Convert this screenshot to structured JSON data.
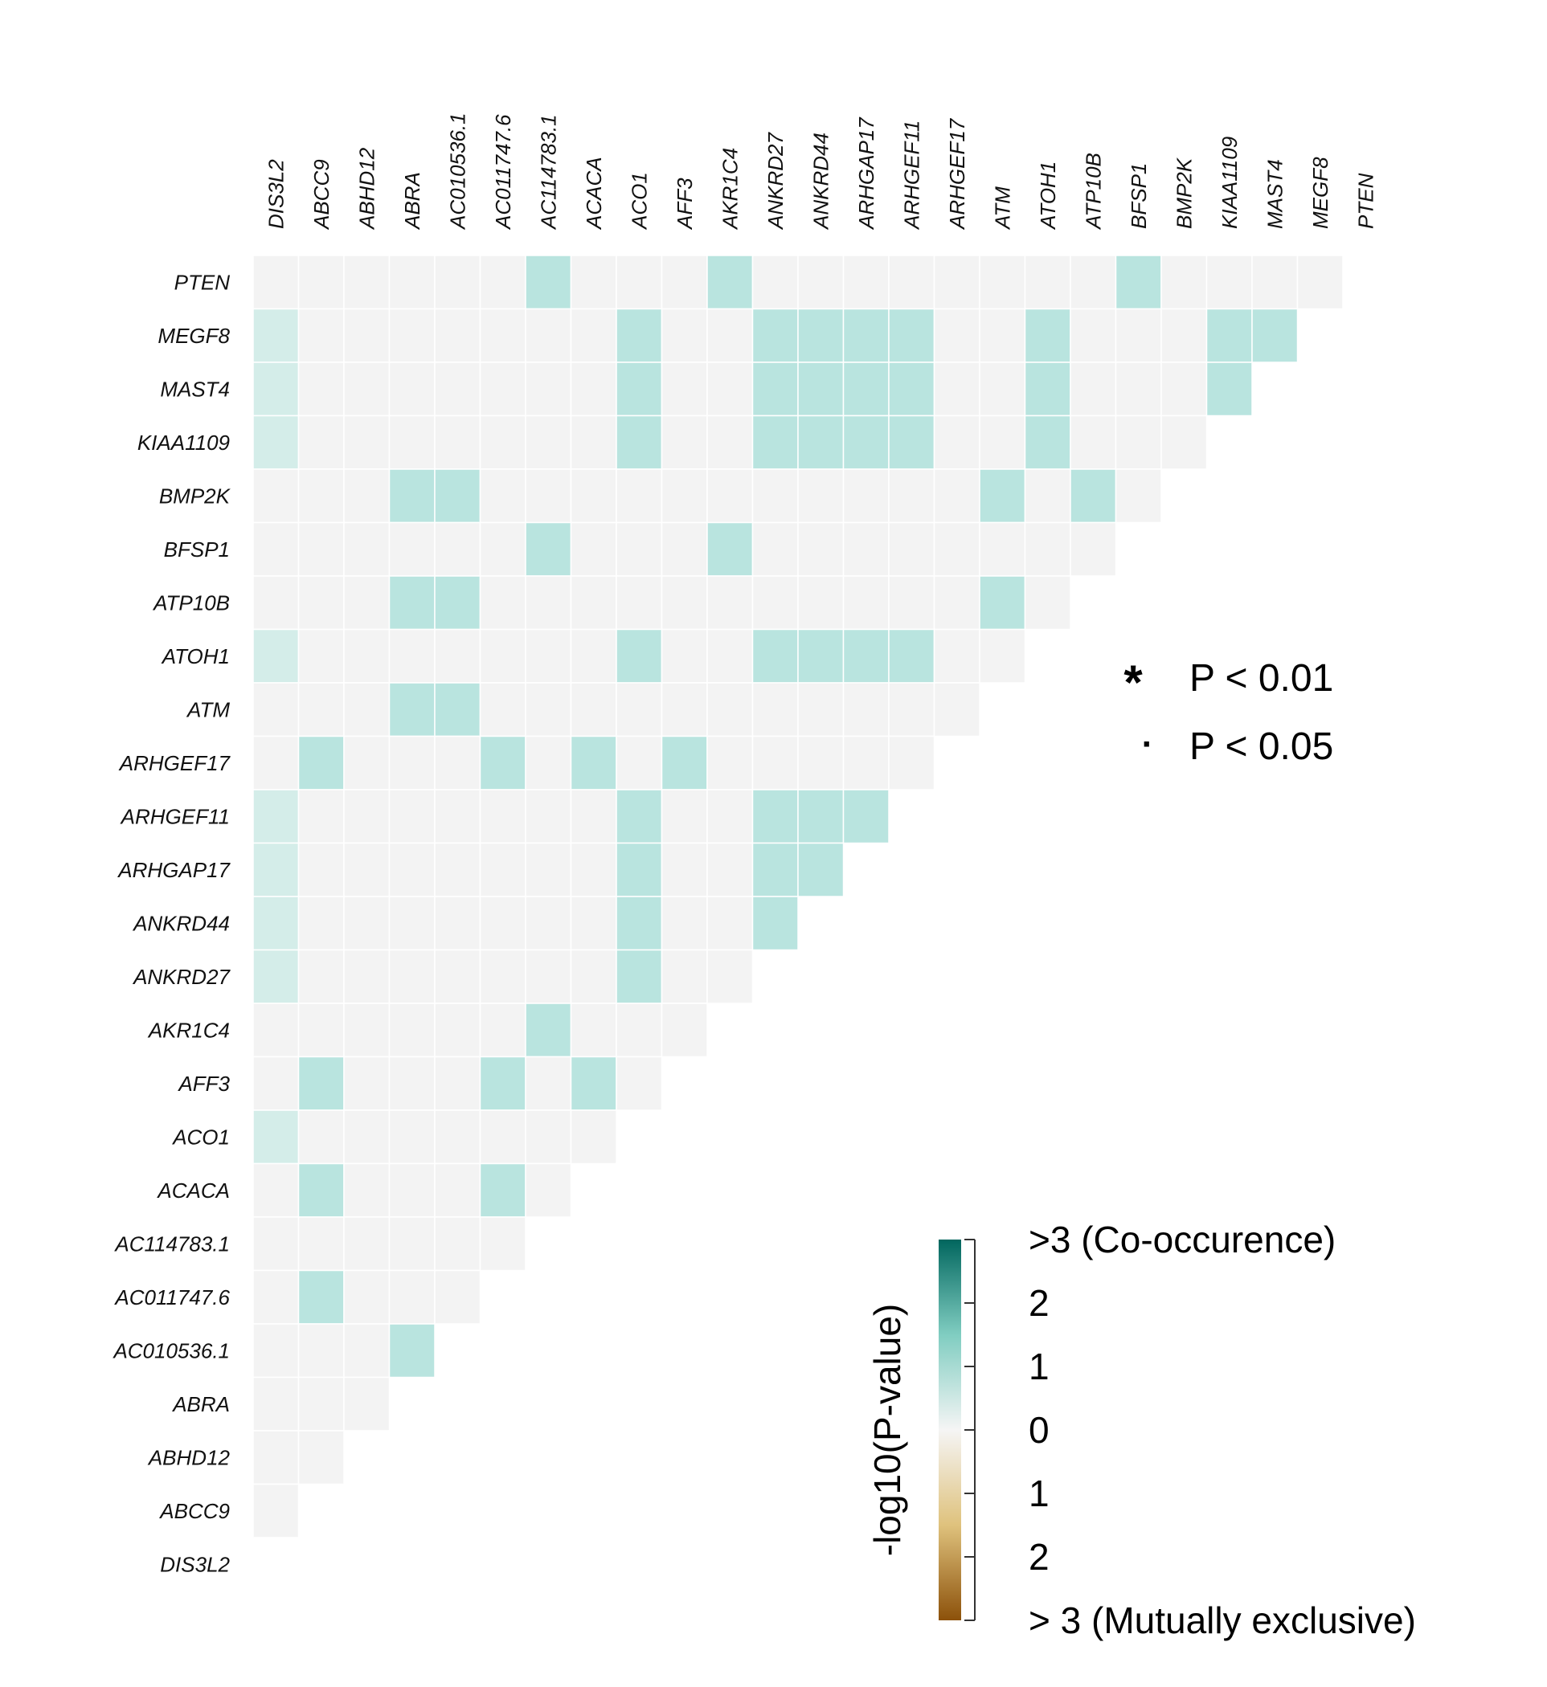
{
  "chart_data": {
    "type": "heatmap",
    "genes": [
      "DIS3L2",
      "ABCC9",
      "ABHD12",
      "ABRA",
      "AC010536.1",
      "AC011747.6",
      "AC114783.1",
      "ACACA",
      "ACO1",
      "AFF3",
      "AKR1C4",
      "ANKRD27",
      "ANKRD44",
      "ARHGAP17",
      "ARHGEF11",
      "ARHGEF17",
      "ATM",
      "ATOH1",
      "ATP10B",
      "BFSP1",
      "BMP2K",
      "KIAA1109",
      "MAST4",
      "MEGF8",
      "PTEN"
    ],
    "row_genes": [
      "PTEN",
      "MEGF8",
      "MAST4",
      "KIAA1109",
      "BMP2K",
      "BFSP1",
      "ATP10B",
      "ATOH1",
      "ATM",
      "ARHGEF17",
      "ARHGEF11",
      "ARHGAP17",
      "ANKRD44",
      "ANKRD27",
      "AKR1C4",
      "AFF3",
      "ACO1",
      "ACACA",
      "AC114783.1",
      "AC011747.6",
      "AC010536.1",
      "ABRA",
      "ABHD12",
      "ABCC9",
      "DIS3L2"
    ],
    "col_genes": [
      "DIS3L2",
      "ABCC9",
      "ABHD12",
      "ABRA",
      "AC010536.1",
      "AC011747.6",
      "AC114783.1",
      "ACACA",
      "ACO1",
      "AFF3",
      "AKR1C4",
      "ANKRD27",
      "ANKRD44",
      "ARHGAP17",
      "ARHGEF11",
      "ARHGEF17",
      "ATM",
      "ATOH1",
      "ATP10B",
      "BFSP1",
      "BMP2K",
      "KIAA1109",
      "MAST4",
      "MEGF8",
      "PTEN"
    ],
    "matrix_note": "values = -log10(P-value); positive = co-occurrence, null = cell not drawn",
    "values": [
      [
        0,
        0,
        0,
        0,
        0,
        0,
        1.2,
        0,
        0,
        0,
        1.2,
        0,
        0,
        0,
        0,
        0,
        0,
        0,
        0,
        1.2,
        0,
        0,
        0,
        0
      ],
      [
        0.7,
        0,
        0,
        0,
        0,
        0,
        0,
        0,
        1.2,
        0,
        0,
        1.2,
        1.2,
        1.2,
        1.2,
        0,
        0,
        1.2,
        0,
        0,
        0,
        1.2,
        1.2
      ],
      [
        0.7,
        0,
        0,
        0,
        0,
        0,
        0,
        0,
        1.2,
        0,
        0,
        1.2,
        1.2,
        1.2,
        1.2,
        0,
        0,
        1.2,
        0,
        0,
        0,
        1.2
      ],
      [
        0.7,
        0,
        0,
        0,
        0,
        0,
        0,
        0,
        1.2,
        0,
        0,
        1.2,
        1.2,
        1.2,
        1.2,
        0,
        0,
        1.2,
        0,
        0,
        0
      ],
      [
        0,
        0,
        0,
        1.2,
        1.2,
        0,
        0,
        0,
        0,
        0,
        0,
        0,
        0,
        0,
        0,
        0,
        1.2,
        0,
        1.2,
        0
      ],
      [
        0,
        0,
        0,
        0,
        0,
        0,
        1.2,
        0,
        0,
        0,
        1.2,
        0,
        0,
        0,
        0,
        0,
        0,
        0,
        0
      ],
      [
        0,
        0,
        0,
        1.2,
        1.2,
        0,
        0,
        0,
        0,
        0,
        0,
        0,
        0,
        0,
        0,
        0,
        1.2,
        0
      ],
      [
        0.7,
        0,
        0,
        0,
        0,
        0,
        0,
        0,
        1.2,
        0,
        0,
        1.2,
        1.2,
        1.2,
        1.2,
        0,
        0
      ],
      [
        0,
        0,
        0,
        1.2,
        1.2,
        0,
        0,
        0,
        0,
        0,
        0,
        0,
        0,
        0,
        0,
        0
      ],
      [
        0,
        1.2,
        0,
        0,
        0,
        1.2,
        0,
        1.2,
        0,
        1.2,
        0,
        0,
        0,
        0,
        0
      ],
      [
        0.7,
        0,
        0,
        0,
        0,
        0,
        0,
        0,
        1.2,
        0,
        0,
        1.2,
        1.2,
        1.2
      ],
      [
        0.7,
        0,
        0,
        0,
        0,
        0,
        0,
        0,
        1.2,
        0,
        0,
        1.2,
        1.2
      ],
      [
        0.7,
        0,
        0,
        0,
        0,
        0,
        0,
        0,
        1.2,
        0,
        0,
        1.2
      ],
      [
        0.7,
        0,
        0,
        0,
        0,
        0,
        0,
        0,
        1.2,
        0,
        0
      ],
      [
        0,
        0,
        0,
        0,
        0,
        0,
        1.2,
        0,
        0,
        0
      ],
      [
        0,
        1.2,
        0,
        0,
        0,
        1.2,
        0,
        1.2,
        0
      ],
      [
        0.7,
        0,
        0,
        0,
        0,
        0,
        0,
        0
      ],
      [
        0,
        1.2,
        0,
        0,
        0,
        1.2,
        0
      ],
      [
        0,
        0,
        0,
        0,
        0,
        0
      ],
      [
        0,
        1.2,
        0,
        0,
        0
      ],
      [
        0,
        0,
        0,
        1.2
      ],
      [
        0,
        0,
        0
      ],
      [
        0,
        0
      ],
      [
        0
      ],
      []
    ],
    "significance_legend": [
      {
        "symbol": "*",
        "label": "P < 0.01"
      },
      {
        "symbol": "·",
        "label": "P < 0.05"
      }
    ],
    "colorbar": {
      "title": "-log10(P-value)",
      "tick_labels": [
        ">3 (Co-occurence)",
        "2",
        "1",
        "0",
        "1",
        "2",
        "> 3 (Mutually exclusive)"
      ],
      "colors": {
        "top": "#01665e",
        "mid_high": "#80cdc1",
        "mid": "#f5f5f5",
        "mid_low": "#dfc27d",
        "bottom": "#8c510a"
      }
    },
    "colors": {
      "empty_cell": "#f3f3f3",
      "light": "#d4ede9",
      "medium": "#b9e4df",
      "gridline": "#ffffff"
    }
  }
}
